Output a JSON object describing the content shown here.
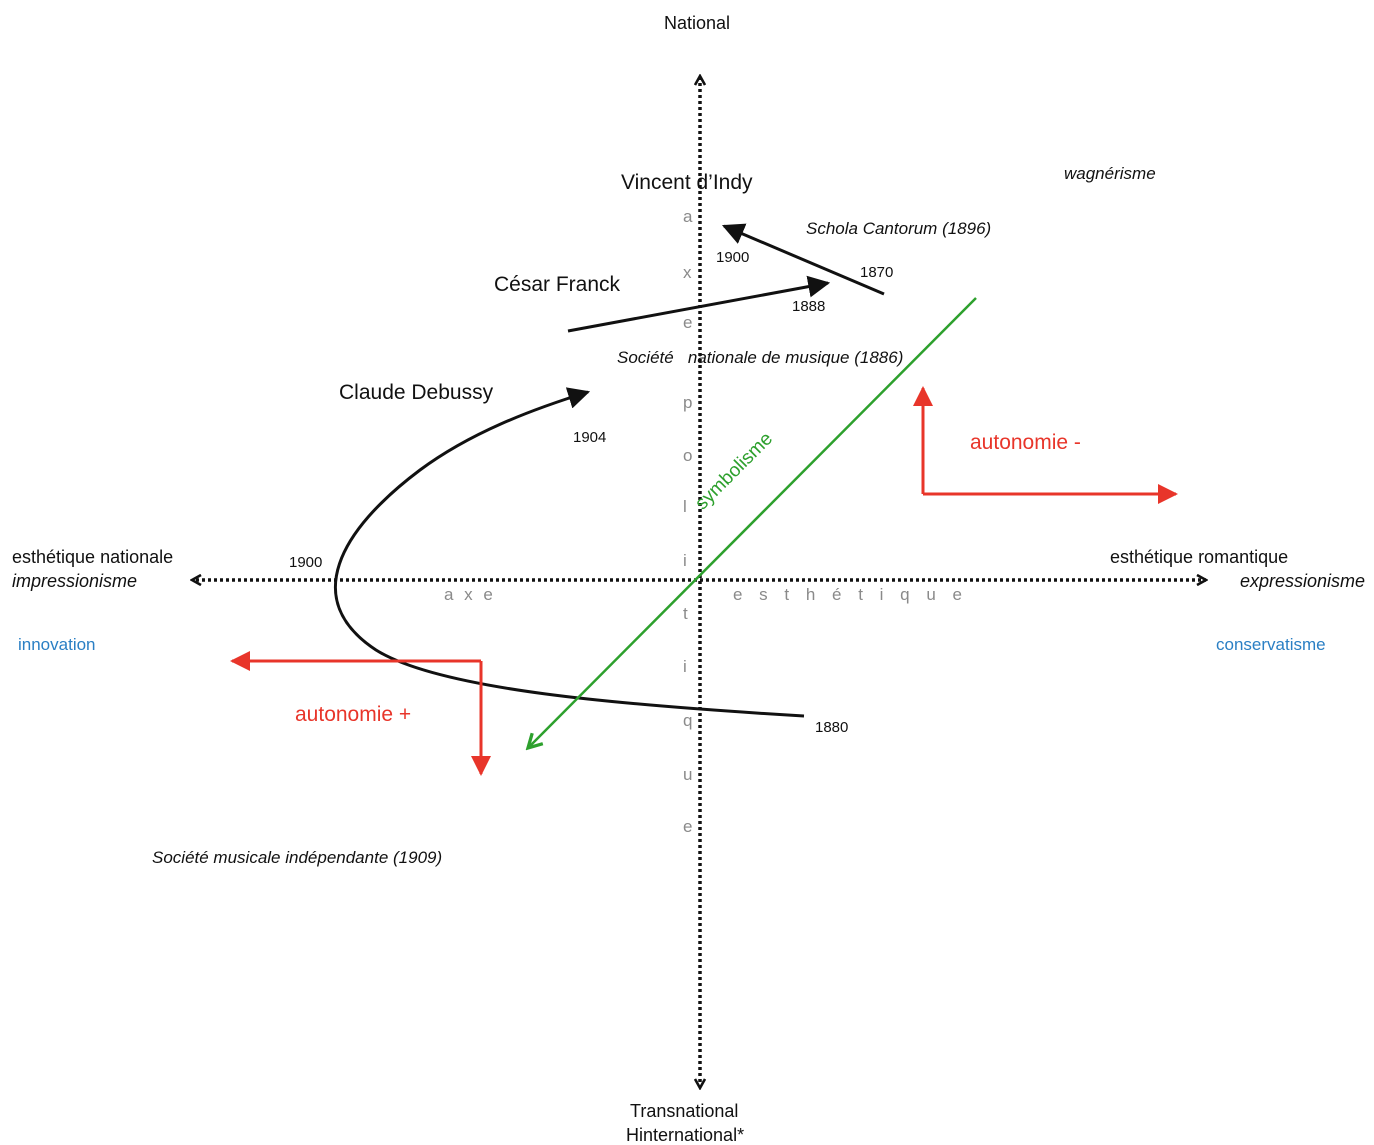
{
  "axes": {
    "top": "National",
    "bottom_line1": "Transnational",
    "bottom_line2": "Hinternational*",
    "left_line1": "esthétique nationale",
    "left_line2": "impressionisme",
    "right_line1": "esthétique romantique",
    "right_line2": "expressionisme",
    "horizontal_axis_word1": "a x e",
    "horizontal_axis_word2": "e s t h é t i q u e",
    "vertical_axis_letters": [
      "a",
      "x",
      "e",
      "p",
      "o",
      "l",
      "i",
      "t",
      "i",
      "q",
      "u",
      "e"
    ]
  },
  "composers": {
    "indy": "Vincent d’Indy",
    "franck": "César Franck",
    "debussy": "Claude Debussy"
  },
  "institutions": {
    "wagnerisme": "wagnérisme",
    "schola": "Schola Cantorum (1896)",
    "snm": "Société   nationale de musique (1886)",
    "smi": "Société musicale indépendante (1909)"
  },
  "years": {
    "indy_end": "1900",
    "indy_start": "1870",
    "franck_end": "1888",
    "debussy_end": "1904",
    "debussy_mid": "1900",
    "debussy_start": "1880"
  },
  "poles": {
    "innovation": "innovation",
    "conservatisme": "conservatisme",
    "autonomie_minus": "autonomie -",
    "autonomie_plus": "autonomie +"
  },
  "movement": "symbolisme",
  "colors": {
    "axis": "#111111",
    "blue": "#2a7fc4",
    "red": "#e8352a",
    "green": "#2da02d",
    "grey_letters": "#8a8a8a"
  }
}
